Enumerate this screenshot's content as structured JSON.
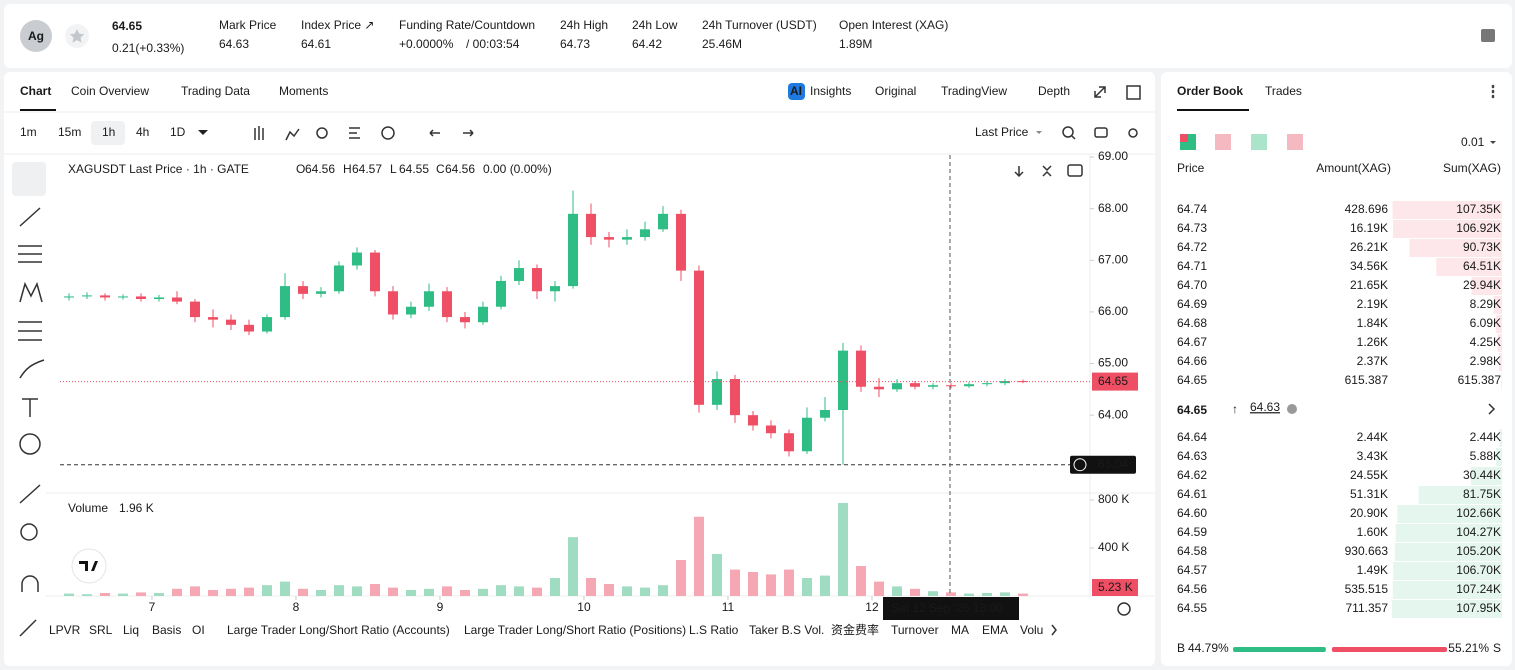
{
  "header": {
    "icon": "Ag",
    "price": "64.65",
    "change": "0.21(+0.33%)",
    "stats": [
      {
        "label": "Mark Price",
        "value": "64.63"
      },
      {
        "label": "Index Price ↗",
        "value": "64.61"
      },
      {
        "label": "Funding Rate/Countdown",
        "value": "+0.0000%",
        "value2": "/ 00:03:54"
      },
      {
        "label": "24h High",
        "value": "64.73"
      },
      {
        "label": "24h Low",
        "value": "64.42"
      },
      {
        "label": "24h Turnover (USDT)",
        "value": "25.46M"
      },
      {
        "label": "Open Interest (XAG)",
        "value": "1.89M"
      }
    ]
  },
  "toolbar": {
    "tabs": [
      "Chart",
      "Coin Overview",
      "Trading Data",
      "Moments"
    ],
    "insights_badge": "AI",
    "views": [
      "Insights",
      "Original",
      "TradingView",
      "Depth"
    ],
    "intervals": [
      "1m",
      "15m",
      "1h",
      "4h",
      "1D"
    ],
    "price_type": "Last Price"
  },
  "chart_data": {
    "type": "candlestick",
    "title": "XAGUSDT Last Price · 1h · GATE",
    "ohlc_labels": [
      "O",
      "H",
      "L",
      "C"
    ],
    "ohlc_values": [
      64.56,
      64.57,
      64.55,
      64.56
    ],
    "change_text": "0.00 (0.00%)",
    "up_color": "#2ebd85",
    "down_color": "#ef4f64",
    "candles": [
      [
        66.28,
        66.36,
        66.22,
        66.3
      ],
      [
        66.3,
        66.38,
        66.25,
        66.32
      ],
      [
        66.32,
        66.36,
        66.22,
        66.28
      ],
      [
        66.28,
        66.34,
        66.24,
        66.3
      ],
      [
        66.3,
        66.36,
        66.2,
        66.25
      ],
      [
        66.25,
        66.33,
        66.2,
        66.28
      ],
      [
        66.28,
        66.4,
        66.15,
        66.2
      ],
      [
        66.2,
        66.25,
        65.8,
        65.9
      ],
      [
        65.9,
        66.05,
        65.7,
        65.85
      ],
      [
        65.85,
        65.95,
        65.65,
        65.75
      ],
      [
        65.75,
        65.85,
        65.55,
        65.62
      ],
      [
        65.62,
        65.95,
        65.58,
        65.9
      ],
      [
        65.9,
        66.75,
        65.85,
        66.5
      ],
      [
        66.5,
        66.6,
        66.25,
        66.35
      ],
      [
        66.35,
        66.48,
        66.28,
        66.4
      ],
      [
        66.4,
        66.98,
        66.35,
        66.9
      ],
      [
        66.9,
        67.25,
        66.82,
        67.15
      ],
      [
        67.15,
        67.2,
        66.3,
        66.4
      ],
      [
        66.4,
        66.5,
        65.85,
        65.95
      ],
      [
        65.95,
        66.2,
        65.88,
        66.1
      ],
      [
        66.1,
        66.55,
        66.02,
        66.4
      ],
      [
        66.4,
        66.48,
        65.8,
        65.9
      ],
      [
        65.9,
        66.0,
        65.68,
        65.8
      ],
      [
        65.8,
        66.2,
        65.75,
        66.1
      ],
      [
        66.1,
        66.7,
        66.05,
        66.6
      ],
      [
        66.6,
        67.0,
        66.52,
        66.85
      ],
      [
        66.85,
        66.92,
        66.25,
        66.4
      ],
      [
        66.4,
        66.6,
        66.2,
        66.5
      ],
      [
        66.5,
        68.35,
        66.45,
        67.9
      ],
      [
        67.9,
        68.1,
        67.3,
        67.45
      ],
      [
        67.45,
        67.55,
        67.25,
        67.4
      ],
      [
        67.4,
        67.6,
        67.3,
        67.45
      ],
      [
        67.45,
        67.75,
        67.38,
        67.6
      ],
      [
        67.6,
        68.05,
        67.55,
        67.9
      ],
      [
        67.9,
        67.98,
        66.6,
        66.8
      ],
      [
        66.8,
        66.9,
        64.05,
        64.2
      ],
      [
        64.2,
        64.85,
        64.1,
        64.7
      ],
      [
        64.7,
        64.78,
        63.85,
        64.0
      ],
      [
        64.0,
        64.08,
        63.7,
        63.8
      ],
      [
        63.8,
        63.9,
        63.55,
        63.65
      ],
      [
        63.65,
        63.72,
        63.2,
        63.3
      ],
      [
        63.3,
        64.15,
        63.25,
        63.95
      ],
      [
        63.95,
        64.35,
        63.88,
        64.1
      ],
      [
        64.1,
        65.4,
        63.04,
        65.25
      ],
      [
        65.25,
        65.35,
        64.45,
        64.55
      ],
      [
        64.55,
        64.72,
        64.35,
        64.5
      ],
      [
        64.5,
        64.7,
        64.45,
        64.62
      ],
      [
        64.62,
        64.66,
        64.5,
        64.55
      ],
      [
        64.55,
        64.62,
        64.5,
        64.58
      ],
      [
        64.58,
        64.62,
        64.52,
        64.56
      ],
      [
        64.56,
        64.64,
        64.53,
        64.6
      ],
      [
        64.6,
        64.66,
        64.56,
        64.62
      ],
      [
        64.62,
        64.7,
        64.58,
        64.66
      ],
      [
        64.66,
        64.69,
        64.62,
        64.65
      ]
    ],
    "ylim": [
      62.55,
      69.04
    ],
    "yticks": [
      {
        "value": 69,
        "label": "69.00"
      },
      {
        "value": 68,
        "label": "68.00"
      },
      {
        "value": 67,
        "label": "67.00"
      },
      {
        "value": 66,
        "label": "66.00"
      },
      {
        "value": 65,
        "label": "65.00"
      },
      {
        "value": 64,
        "label": "64.00"
      }
    ],
    "xlim": [
      0,
      171.67
    ],
    "xticks": [
      {
        "value": 15.33,
        "label": "7"
      },
      {
        "value": 39.33,
        "label": "8"
      },
      {
        "value": 63.33,
        "label": "9"
      },
      {
        "value": 87.33,
        "label": "10"
      },
      {
        "value": 111.33,
        "label": "11"
      },
      {
        "value": 135.33,
        "label": "12"
      }
    ],
    "last_price": 64.65,
    "crosshair_price": 63.04,
    "crosshair_time": "Sat 12 Sep '26   13:00",
    "volume": {
      "title": "Volume",
      "value_text": "1.96 K",
      "last": "5.23 K",
      "values": [
        20000,
        15000,
        25000,
        20000,
        30000,
        25000,
        60000,
        80000,
        50000,
        60000,
        70000,
        90000,
        120000,
        60000,
        50000,
        90000,
        80000,
        100000,
        70000,
        50000,
        60000,
        80000,
        50000,
        60000,
        90000,
        80000,
        70000,
        150000,
        490000,
        150000,
        100000,
        80000,
        70000,
        90000,
        300000,
        660000,
        350000,
        220000,
        200000,
        180000,
        220000,
        150000,
        170000,
        775000,
        250000,
        120000,
        80000,
        60000,
        40000,
        30000,
        20000,
        25000,
        30000,
        20000
      ],
      "ylim": [
        0,
        858000
      ],
      "yticks": [
        {
          "value": 800000,
          "label": "800 K"
        },
        {
          "value": 400000,
          "label": "400 K"
        }
      ]
    }
  },
  "indicators": [
    "LPVR",
    "SRL",
    "Liq",
    "Basis",
    "OI",
    "Large Trader Long/Short Ratio (Accounts)",
    "Large Trader Long/Short Ratio (Positions)",
    "L.S Ratio",
    "Taker B.S Vol.",
    "资金费率",
    "Turnover",
    "MA",
    "EMA",
    "Volu"
  ],
  "order_book": {
    "tabs": [
      "Order Book",
      "Trades"
    ],
    "precision": "0.01",
    "headers": [
      "Price",
      "Amount(XAG)",
      "Sum(XAG)"
    ],
    "asks": [
      {
        "price": "64.74",
        "amount": "428.696",
        "sum": {
          "value": 107350,
          "label": "107.35K"
        }
      },
      {
        "price": "64.73",
        "amount": "16.19K",
        "sum": {
          "value": 106920,
          "label": "106.92K"
        }
      },
      {
        "price": "64.72",
        "amount": "26.21K",
        "sum": {
          "value": 90730,
          "label": "90.73K"
        }
      },
      {
        "price": "64.71",
        "amount": "34.56K",
        "sum": {
          "value": 64510,
          "label": "64.51K"
        }
      },
      {
        "price": "64.70",
        "amount": "21.65K",
        "sum": {
          "value": 29940,
          "label": "29.94K"
        }
      },
      {
        "price": "64.69",
        "amount": "2.19K",
        "sum": {
          "value": 8290,
          "label": "8.29K"
        }
      },
      {
        "price": "64.68",
        "amount": "1.84K",
        "sum": {
          "value": 6090,
          "label": "6.09K"
        }
      },
      {
        "price": "64.67",
        "amount": "1.26K",
        "sum": {
          "value": 4250,
          "label": "4.25K"
        }
      },
      {
        "price": "64.66",
        "amount": "2.37K",
        "sum": {
          "value": 2980,
          "label": "2.98K"
        }
      },
      {
        "price": "64.65",
        "amount": "615.387",
        "sum": {
          "value": 615.387,
          "label": "615.387"
        }
      }
    ],
    "mid_price": "64.65",
    "mid_arrow": "↑",
    "mark_price": "64.63",
    "bids": [
      {
        "price": "64.64",
        "amount": "2.44K",
        "sum": {
          "value": 2440,
          "label": "2.44K"
        }
      },
      {
        "price": "64.63",
        "amount": "3.43K",
        "sum": {
          "value": 5880,
          "label": "5.88K"
        }
      },
      {
        "price": "64.62",
        "amount": "24.55K",
        "sum": {
          "value": 30440,
          "label": "30.44K"
        }
      },
      {
        "price": "64.61",
        "amount": "51.31K",
        "sum": {
          "value": 81750,
          "label": "81.75K"
        }
      },
      {
        "price": "64.60",
        "amount": "20.90K",
        "sum": {
          "value": 102660,
          "label": "102.66K"
        }
      },
      {
        "price": "64.59",
        "amount": "1.60K",
        "sum": {
          "value": 104270,
          "label": "104.27K"
        }
      },
      {
        "price": "64.58",
        "amount": "930.663",
        "sum": {
          "value": 105200,
          "label": "105.20K"
        }
      },
      {
        "price": "64.57",
        "amount": "1.49K",
        "sum": {
          "value": 106700,
          "label": "106.70K"
        }
      },
      {
        "price": "64.56",
        "amount": "535.515",
        "sum": {
          "value": 107240,
          "label": "107.24K"
        }
      },
      {
        "price": "64.55",
        "amount": "711.357",
        "sum": {
          "value": 107950,
          "label": "107.95K"
        }
      }
    ],
    "ratio": {
      "buy_label": "B",
      "buy": 44.79,
      "buy_text": "44.79%",
      "sell": 55.21,
      "sell_text": "55.21%",
      "sell_label": "S"
    }
  }
}
